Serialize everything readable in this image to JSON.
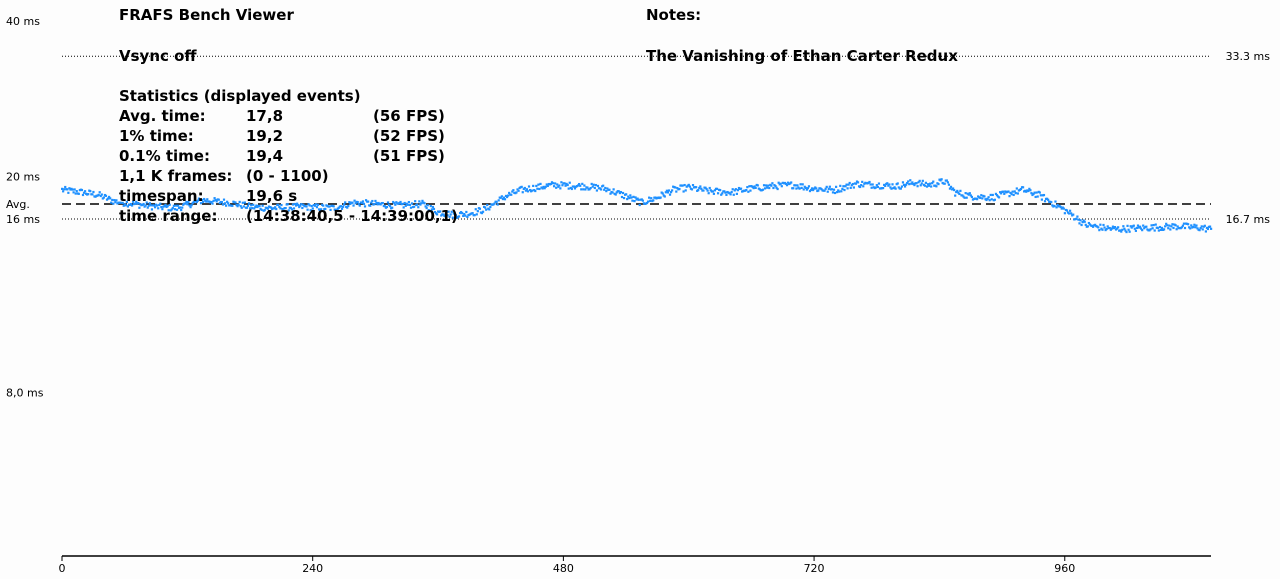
{
  "header": {
    "app_title": "FRAFS Bench Viewer",
    "vsync": "Vsync off",
    "notes_label": "Notes:",
    "notes_text": "The Vanishing of Ethan Carter Redux"
  },
  "statistics": {
    "title": "Statistics (displayed events)",
    "rows": [
      {
        "label": "Avg. time:",
        "value": "17,8",
        "extra": "(56 FPS)"
      },
      {
        "label": "1% time:",
        "value": "19,2",
        "extra": "(52 FPS)"
      },
      {
        "label": "0.1% time:",
        "value": "19,4",
        "extra": "(51 FPS)"
      },
      {
        "label": "1,1 K frames:",
        "value": "(0 - 1100)",
        "extra": ""
      },
      {
        "label": "timespan:",
        "value": "19,6 s",
        "extra": ""
      },
      {
        "label": "time range:",
        "value": "(14:38:40,5 - 14:39:00,1)",
        "extra": ""
      }
    ]
  },
  "chart_data": {
    "type": "scatter",
    "scale": "log",
    "xlim": [
      0,
      1100
    ],
    "ylim": [
      4,
      40
    ],
    "x_ticks": [
      {
        "value": 0,
        "label": "0"
      },
      {
        "value": 240,
        "label": "240"
      },
      {
        "value": 480,
        "label": "480"
      },
      {
        "value": 720,
        "label": "720"
      },
      {
        "value": 960,
        "label": "960"
      }
    ],
    "y_ticks_left": [
      {
        "value": 40,
        "label": "40 ms"
      },
      {
        "value": 20,
        "label": "20 ms"
      },
      {
        "value": 16,
        "label": "16 ms"
      },
      {
        "value": 8,
        "label": "8,0 ms"
      }
    ],
    "avg_line": {
      "value": 17.8,
      "label": "Avg."
    },
    "reference_lines": [
      {
        "value": 33.3,
        "label": "33.3 ms"
      },
      {
        "value": 16.7,
        "label": "16.7 ms"
      }
    ],
    "series_color": "#1e90ff",
    "frametime_trend": [
      {
        "x": 0,
        "y": 18.9
      },
      {
        "x": 20,
        "y": 18.7
      },
      {
        "x": 35,
        "y": 18.5
      },
      {
        "x": 50,
        "y": 18.0
      },
      {
        "x": 70,
        "y": 17.8
      },
      {
        "x": 90,
        "y": 17.6
      },
      {
        "x": 110,
        "y": 17.5
      },
      {
        "x": 135,
        "y": 18.1
      },
      {
        "x": 160,
        "y": 17.9
      },
      {
        "x": 180,
        "y": 17.6
      },
      {
        "x": 200,
        "y": 17.5
      },
      {
        "x": 230,
        "y": 17.6
      },
      {
        "x": 260,
        "y": 17.5
      },
      {
        "x": 280,
        "y": 17.9
      },
      {
        "x": 300,
        "y": 17.8
      },
      {
        "x": 320,
        "y": 17.7
      },
      {
        "x": 345,
        "y": 17.8
      },
      {
        "x": 360,
        "y": 17.2
      },
      {
        "x": 375,
        "y": 17.0
      },
      {
        "x": 390,
        "y": 17.1
      },
      {
        "x": 405,
        "y": 17.4
      },
      {
        "x": 425,
        "y": 18.4
      },
      {
        "x": 440,
        "y": 18.9
      },
      {
        "x": 470,
        "y": 19.3
      },
      {
        "x": 500,
        "y": 19.2
      },
      {
        "x": 520,
        "y": 19.0
      },
      {
        "x": 540,
        "y": 18.4
      },
      {
        "x": 555,
        "y": 17.9
      },
      {
        "x": 570,
        "y": 18.3
      },
      {
        "x": 585,
        "y": 18.9
      },
      {
        "x": 600,
        "y": 19.1
      },
      {
        "x": 620,
        "y": 18.8
      },
      {
        "x": 640,
        "y": 18.7
      },
      {
        "x": 660,
        "y": 19.0
      },
      {
        "x": 680,
        "y": 19.2
      },
      {
        "x": 700,
        "y": 19.3
      },
      {
        "x": 720,
        "y": 19.0
      },
      {
        "x": 740,
        "y": 18.9
      },
      {
        "x": 760,
        "y": 19.4
      },
      {
        "x": 780,
        "y": 19.3
      },
      {
        "x": 800,
        "y": 19.2
      },
      {
        "x": 815,
        "y": 19.5
      },
      {
        "x": 830,
        "y": 19.3
      },
      {
        "x": 845,
        "y": 19.6
      },
      {
        "x": 855,
        "y": 18.7
      },
      {
        "x": 870,
        "y": 18.4
      },
      {
        "x": 890,
        "y": 18.3
      },
      {
        "x": 905,
        "y": 18.6
      },
      {
        "x": 920,
        "y": 18.9
      },
      {
        "x": 935,
        "y": 18.5
      },
      {
        "x": 950,
        "y": 17.8
      },
      {
        "x": 965,
        "y": 17.1
      },
      {
        "x": 980,
        "y": 16.3
      },
      {
        "x": 995,
        "y": 16.1
      },
      {
        "x": 1010,
        "y": 16.0
      },
      {
        "x": 1040,
        "y": 16.1
      },
      {
        "x": 1070,
        "y": 16.2
      },
      {
        "x": 1090,
        "y": 16.1
      },
      {
        "x": 1100,
        "y": 16.0
      }
    ]
  }
}
